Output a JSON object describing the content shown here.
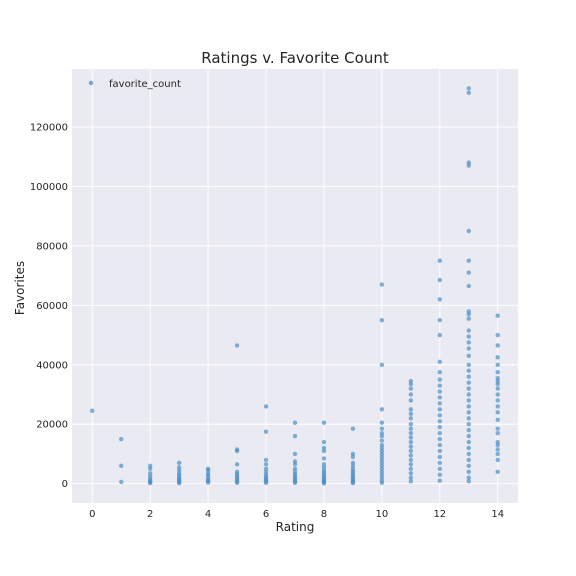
{
  "chart_data": {
    "type": "scatter",
    "title": "Ratings v. Favorite Count",
    "xlabel": "Rating",
    "ylabel": "Favorites",
    "xlim": [
      -0.7,
      14.7
    ],
    "ylim": [
      -6500,
      139500
    ],
    "xticks": [
      0,
      2,
      4,
      6,
      8,
      10,
      12,
      14
    ],
    "yticks": [
      0,
      20000,
      40000,
      60000,
      80000,
      100000,
      120000
    ],
    "grid": true,
    "legend_position": "top-left",
    "series": [
      {
        "name": "favorite_count",
        "color": "#4c8ec4",
        "points": [
          [
            0,
            24500
          ],
          [
            1,
            15000
          ],
          [
            1,
            6000
          ],
          [
            1,
            600
          ],
          [
            2,
            6000
          ],
          [
            2,
            5000
          ],
          [
            2,
            3500
          ],
          [
            2,
            2500
          ],
          [
            2,
            1500
          ],
          [
            2,
            1000
          ],
          [
            2,
            500
          ],
          [
            2,
            200
          ],
          [
            3,
            7000
          ],
          [
            3,
            5500
          ],
          [
            3,
            4500
          ],
          [
            3,
            3500
          ],
          [
            3,
            2800
          ],
          [
            3,
            2000
          ],
          [
            3,
            1500
          ],
          [
            3,
            1000
          ],
          [
            3,
            500
          ],
          [
            3,
            200
          ],
          [
            4,
            5000
          ],
          [
            4,
            4500
          ],
          [
            4,
            3500
          ],
          [
            4,
            2800
          ],
          [
            4,
            2000
          ],
          [
            4,
            1200
          ],
          [
            4,
            800
          ],
          [
            4,
            400
          ],
          [
            5,
            46500
          ],
          [
            5,
            11500
          ],
          [
            5,
            11000
          ],
          [
            5,
            6500
          ],
          [
            5,
            4000
          ],
          [
            5,
            3200
          ],
          [
            5,
            2500
          ],
          [
            5,
            1800
          ],
          [
            5,
            1200
          ],
          [
            5,
            700
          ],
          [
            5,
            300
          ],
          [
            6,
            26000
          ],
          [
            6,
            17500
          ],
          [
            6,
            8000
          ],
          [
            6,
            6500
          ],
          [
            6,
            5000
          ],
          [
            6,
            4000
          ],
          [
            6,
            3000
          ],
          [
            6,
            2300
          ],
          [
            6,
            1700
          ],
          [
            6,
            1200
          ],
          [
            6,
            700
          ],
          [
            6,
            300
          ],
          [
            7,
            20500
          ],
          [
            7,
            16000
          ],
          [
            7,
            10000
          ],
          [
            7,
            7500
          ],
          [
            7,
            6500
          ],
          [
            7,
            5000
          ],
          [
            7,
            4000
          ],
          [
            7,
            3200
          ],
          [
            7,
            2500
          ],
          [
            7,
            1800
          ],
          [
            7,
            1200
          ],
          [
            7,
            700
          ],
          [
            7,
            300
          ],
          [
            8,
            20500
          ],
          [
            8,
            14000
          ],
          [
            8,
            12000
          ],
          [
            8,
            11000
          ],
          [
            8,
            8500
          ],
          [
            8,
            6500
          ],
          [
            8,
            5500
          ],
          [
            8,
            4500
          ],
          [
            8,
            3800
          ],
          [
            8,
            3000
          ],
          [
            8,
            2400
          ],
          [
            8,
            1800
          ],
          [
            8,
            1300
          ],
          [
            8,
            800
          ],
          [
            8,
            400
          ],
          [
            8,
            100
          ],
          [
            9,
            18500
          ],
          [
            9,
            10000
          ],
          [
            9,
            9000
          ],
          [
            9,
            7000
          ],
          [
            9,
            6000
          ],
          [
            9,
            5000
          ],
          [
            9,
            4200
          ],
          [
            9,
            3500
          ],
          [
            9,
            2800
          ],
          [
            9,
            2200
          ],
          [
            9,
            1600
          ],
          [
            9,
            1100
          ],
          [
            9,
            600
          ],
          [
            9,
            200
          ],
          [
            10,
            67000
          ],
          [
            10,
            55000
          ],
          [
            10,
            40000
          ],
          [
            10,
            25000
          ],
          [
            10,
            20500
          ],
          [
            10,
            18500
          ],
          [
            10,
            17000
          ],
          [
            10,
            16000
          ],
          [
            10,
            14500
          ],
          [
            10,
            13000
          ],
          [
            10,
            12000
          ],
          [
            10,
            11000
          ],
          [
            10,
            10000
          ],
          [
            10,
            9000
          ],
          [
            10,
            8000
          ],
          [
            10,
            7000
          ],
          [
            10,
            6000
          ],
          [
            10,
            5000
          ],
          [
            10,
            4000
          ],
          [
            10,
            3000
          ],
          [
            10,
            2000
          ],
          [
            10,
            1000
          ],
          [
            10,
            300
          ],
          [
            11,
            34500
          ],
          [
            11,
            33500
          ],
          [
            11,
            32000
          ],
          [
            11,
            30000
          ],
          [
            11,
            28000
          ],
          [
            11,
            25000
          ],
          [
            11,
            23500
          ],
          [
            11,
            22000
          ],
          [
            11,
            20000
          ],
          [
            11,
            18500
          ],
          [
            11,
            17000
          ],
          [
            11,
            15500
          ],
          [
            11,
            14000
          ],
          [
            11,
            12500
          ],
          [
            11,
            11000
          ],
          [
            11,
            9500
          ],
          [
            11,
            8000
          ],
          [
            11,
            6500
          ],
          [
            11,
            5000
          ],
          [
            11,
            3500
          ],
          [
            11,
            2000
          ],
          [
            11,
            800
          ],
          [
            12,
            75000
          ],
          [
            12,
            68500
          ],
          [
            12,
            62000
          ],
          [
            12,
            55000
          ],
          [
            12,
            50000
          ],
          [
            12,
            41000
          ],
          [
            12,
            37500
          ],
          [
            12,
            35000
          ],
          [
            12,
            33000
          ],
          [
            12,
            31000
          ],
          [
            12,
            29000
          ],
          [
            12,
            27000
          ],
          [
            12,
            25000
          ],
          [
            12,
            23000
          ],
          [
            12,
            21000
          ],
          [
            12,
            19000
          ],
          [
            12,
            17000
          ],
          [
            12,
            15000
          ],
          [
            12,
            13000
          ],
          [
            12,
            11000
          ],
          [
            12,
            9000
          ],
          [
            12,
            7000
          ],
          [
            12,
            5000
          ],
          [
            12,
            3000
          ],
          [
            12,
            1000
          ],
          [
            13,
            133000
          ],
          [
            13,
            131500
          ],
          [
            13,
            108000
          ],
          [
            13,
            107000
          ],
          [
            13,
            85000
          ],
          [
            13,
            75000
          ],
          [
            13,
            71000
          ],
          [
            13,
            66500
          ],
          [
            13,
            58000
          ],
          [
            13,
            57000
          ],
          [
            13,
            55500
          ],
          [
            13,
            51500
          ],
          [
            13,
            49500
          ],
          [
            13,
            47500
          ],
          [
            13,
            45500
          ],
          [
            13,
            43000
          ],
          [
            13,
            40000
          ],
          [
            13,
            38000
          ],
          [
            13,
            36000
          ],
          [
            13,
            34000
          ],
          [
            13,
            32000
          ],
          [
            13,
            30000
          ],
          [
            13,
            28000
          ],
          [
            13,
            26000
          ],
          [
            13,
            24000
          ],
          [
            13,
            22000
          ],
          [
            13,
            20000
          ],
          [
            13,
            18000
          ],
          [
            13,
            16000
          ],
          [
            13,
            14000
          ],
          [
            13,
            12000
          ],
          [
            13,
            10000
          ],
          [
            13,
            8000
          ],
          [
            13,
            6000
          ],
          [
            13,
            4000
          ],
          [
            13,
            2000
          ],
          [
            13,
            800
          ],
          [
            14,
            56500
          ],
          [
            14,
            50000
          ],
          [
            14,
            46500
          ],
          [
            14,
            42500
          ],
          [
            14,
            40000
          ],
          [
            14,
            37500
          ],
          [
            14,
            35500
          ],
          [
            14,
            34500
          ],
          [
            14,
            33500
          ],
          [
            14,
            32000
          ],
          [
            14,
            30000
          ],
          [
            14,
            28000
          ],
          [
            14,
            26000
          ],
          [
            14,
            24000
          ],
          [
            14,
            21500
          ],
          [
            14,
            18500
          ],
          [
            14,
            17000
          ],
          [
            14,
            14000
          ],
          [
            14,
            13000
          ],
          [
            14,
            11500
          ],
          [
            14,
            10000
          ],
          [
            14,
            8000
          ],
          [
            14,
            4000
          ]
        ]
      }
    ]
  }
}
